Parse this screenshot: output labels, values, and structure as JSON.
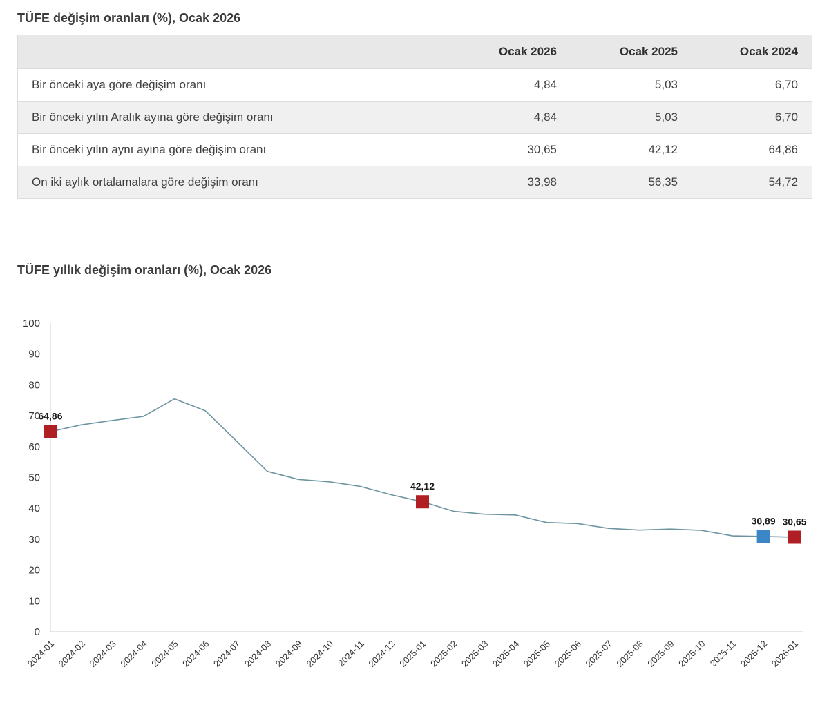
{
  "table": {
    "title": "TÜFE değişim oranları (%), Ocak 2026",
    "columns": [
      "",
      "Ocak 2026",
      "Ocak 2025",
      "Ocak 2024"
    ],
    "rows": [
      {
        "label": "Bir önceki aya göre değişim oranı",
        "values": [
          "4,84",
          "5,03",
          "6,70"
        ]
      },
      {
        "label": "Bir önceki yılın Aralık ayına göre değişim oranı",
        "values": [
          "4,84",
          "5,03",
          "6,70"
        ]
      },
      {
        "label": "Bir önceki yılın aynı ayına göre değişim oranı",
        "values": [
          "30,65",
          "42,12",
          "64,86"
        ]
      },
      {
        "label": "On iki aylık ortalamalara göre değişim oranı",
        "values": [
          "33,98",
          "56,35",
          "54,72"
        ]
      }
    ]
  },
  "chart_data": {
    "type": "line",
    "title": "TÜFE yıllık değişim oranları (%), Ocak 2026",
    "xlabel": "",
    "ylabel": "",
    "ylim": [
      0,
      100
    ],
    "ytick_step": 10,
    "grid": false,
    "legend": "none",
    "line_color": "#6d94a1",
    "axis_color": "#cccccc",
    "x": [
      "2024-01",
      "2024-02",
      "2024-03",
      "2024-04",
      "2024-05",
      "2024-06",
      "2024-07",
      "2024-08",
      "2024-09",
      "2024-10",
      "2024-11",
      "2024-12",
      "2025-01",
      "2025-02",
      "2025-03",
      "2025-04",
      "2025-05",
      "2025-06",
      "2025-07",
      "2025-08",
      "2025-09",
      "2025-10",
      "2025-11",
      "2025-12",
      "2026-01"
    ],
    "values": [
      64.86,
      67.07,
      68.5,
      69.8,
      75.45,
      71.6,
      61.78,
      51.97,
      49.38,
      48.58,
      47.09,
      44.38,
      42.12,
      39.05,
      38.1,
      37.86,
      35.41,
      35.05,
      33.52,
      32.95,
      33.29,
      32.87,
      31.07,
      30.89,
      30.65
    ],
    "markers": [
      {
        "x": "2024-01",
        "value": 64.86,
        "label": "64,86",
        "color": "#b01f24"
      },
      {
        "x": "2025-01",
        "value": 42.12,
        "label": "42,12",
        "color": "#b01f24"
      },
      {
        "x": "2025-12",
        "value": 30.89,
        "label": "30,89",
        "color": "#3d86c6"
      },
      {
        "x": "2026-01",
        "value": 30.65,
        "label": "30,65",
        "color": "#b01f24"
      }
    ]
  }
}
